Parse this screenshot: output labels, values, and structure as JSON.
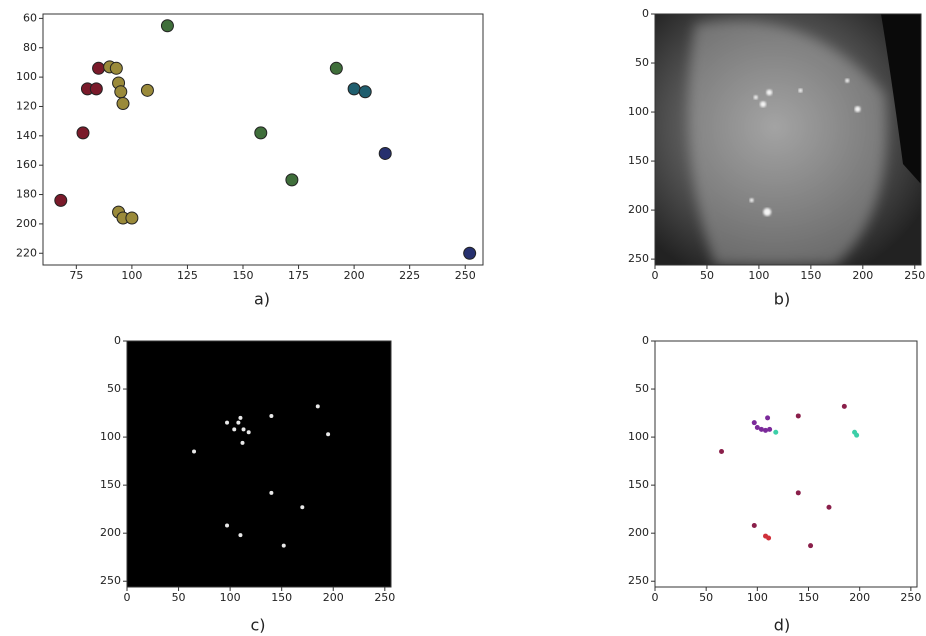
{
  "chart_data": [
    {
      "type": "scatter",
      "caption": "a)",
      "xlim": [
        60,
        258
      ],
      "ylim": [
        57,
        228
      ],
      "y_inverted": true,
      "xticks": [
        75,
        100,
        125,
        150,
        175,
        200,
        225,
        250
      ],
      "yticks": [
        60,
        80,
        100,
        120,
        140,
        160,
        180,
        200,
        220
      ],
      "marker_size": 6,
      "series": [
        {
          "color": "#7a1a2a",
          "x": [
            85,
            80,
            84,
            78,
            68
          ],
          "y": [
            94,
            108,
            108,
            138,
            184
          ]
        },
        {
          "color": "#9a8a3a",
          "x": [
            90,
            93,
            94,
            95,
            96,
            107,
            94,
            96,
            100
          ],
          "y": [
            93,
            94,
            104,
            110,
            118,
            109,
            192,
            196,
            196
          ]
        },
        {
          "color": "#3f6e3a",
          "x": [
            116,
            192,
            158,
            172
          ],
          "y": [
            65,
            94,
            138,
            170
          ]
        },
        {
          "color": "#1f5e6e",
          "x": [
            200,
            205
          ],
          "y": [
            108,
            110
          ]
        },
        {
          "color": "#26306e",
          "x": [
            214,
            252
          ],
          "y": [
            152,
            220
          ]
        }
      ]
    },
    {
      "type": "image",
      "caption": "b)",
      "xlim": [
        0,
        256
      ],
      "ylim": [
        0,
        256
      ],
      "y_inverted": true,
      "xticks": [
        0,
        50,
        100,
        150,
        200,
        250
      ],
      "yticks": [
        0,
        50,
        100,
        150,
        200,
        250
      ]
    },
    {
      "type": "scatter",
      "caption": "c)",
      "xlim": [
        0,
        256
      ],
      "ylim": [
        0,
        256
      ],
      "y_inverted": true,
      "background": "#000000",
      "xticks": [
        0,
        50,
        100,
        150,
        200,
        250
      ],
      "yticks": [
        0,
        50,
        100,
        150,
        200,
        250
      ],
      "marker_size": 2,
      "series": [
        {
          "color": "#e8e8e8",
          "x": [
            110,
            108,
            97,
            104,
            113,
            118,
            140,
            185,
            195,
            65,
            140,
            170,
            97,
            110,
            152,
            112
          ],
          "y": [
            80,
            85,
            85,
            92,
            92,
            95,
            78,
            68,
            97,
            115,
            158,
            173,
            192,
            202,
            213,
            106
          ]
        }
      ]
    },
    {
      "type": "scatter",
      "caption": "d)",
      "xlim": [
        0,
        256
      ],
      "ylim": [
        0,
        256
      ],
      "y_inverted": true,
      "xticks": [
        0,
        50,
        100,
        150,
        200,
        250
      ],
      "yticks": [
        0,
        50,
        100,
        150,
        200,
        250
      ],
      "marker_size": 2.5,
      "series": [
        {
          "color": "#7b2a9a",
          "x": [
            97,
            104,
            108,
            112,
            110,
            100
          ],
          "y": [
            85,
            92,
            93,
            92,
            80,
            90
          ]
        },
        {
          "color": "#3ccfa8",
          "x": [
            195,
            197,
            118
          ],
          "y": [
            95,
            98,
            95
          ]
        },
        {
          "color": "#8a1f4a",
          "x": [
            65,
            140,
            185,
            140,
            170,
            97,
            152
          ],
          "y": [
            115,
            78,
            68,
            158,
            173,
            192,
            213
          ]
        },
        {
          "color": "#d0303a",
          "x": [
            108,
            111
          ],
          "y": [
            203,
            205
          ]
        }
      ]
    }
  ]
}
